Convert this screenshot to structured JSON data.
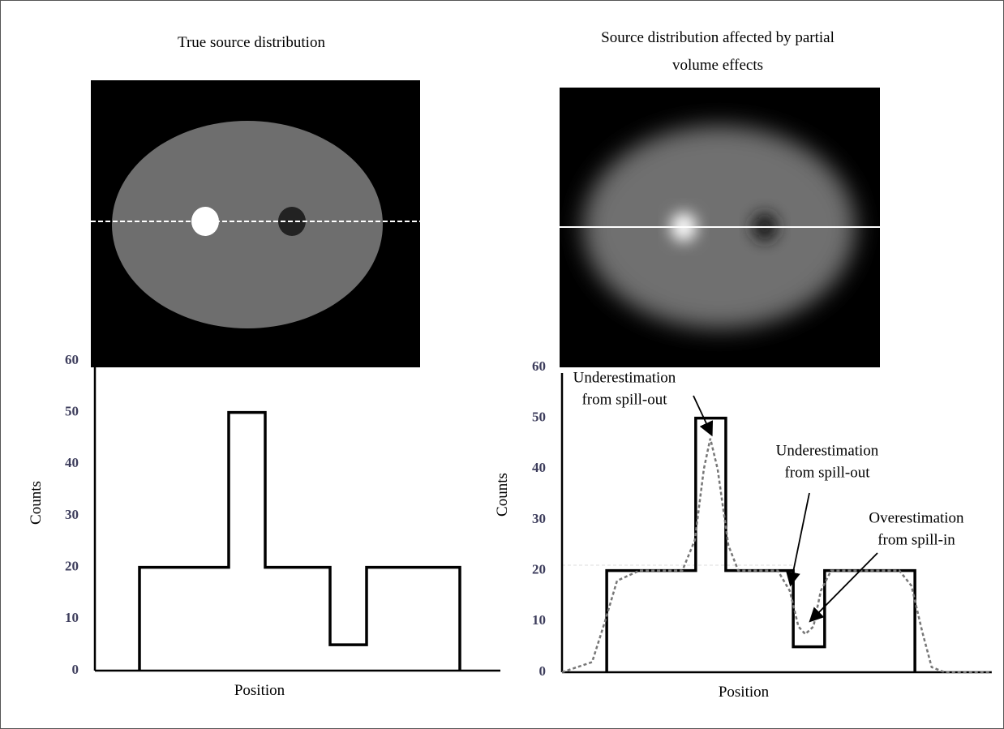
{
  "chart_data": [
    {
      "type": "line",
      "title": [
        "True source distribution"
      ],
      "ylabel": "Counts",
      "xlabel": "Position",
      "ylim": [
        0,
        60
      ],
      "yticks": [
        0,
        10,
        20,
        30,
        40,
        50,
        60
      ],
      "xlim": [
        0,
        100
      ],
      "grid": false,
      "series": [
        {
          "color": "#000000",
          "dash": false,
          "x": [
            11,
            11,
            33,
            33,
            42,
            42,
            58,
            58,
            67,
            67,
            90,
            90
          ],
          "values": [
            0,
            20,
            20,
            50,
            50,
            20,
            20,
            5,
            5,
            20,
            20,
            0
          ]
        }
      ],
      "annotations": []
    },
    {
      "type": "line",
      "title": [
        "Source distribution affected by partial",
        "volume effects"
      ],
      "ylabel": "Counts",
      "xlabel": "Position",
      "ylim": [
        0,
        60
      ],
      "yticks": [
        0,
        10,
        20,
        30,
        40,
        50,
        60
      ],
      "xlim": [
        0,
        100
      ],
      "grid": false,
      "series": [
        {
          "color": "#000000",
          "dash": false,
          "x": [
            10.4,
            10.4,
            31.1,
            31.1,
            38.1,
            38.1,
            53.8,
            53.8,
            61.1,
            61.1,
            82.1,
            82.1
          ],
          "values": [
            0,
            20,
            20,
            50,
            50,
            20,
            20,
            5,
            5,
            20,
            20,
            0
          ]
        },
        {
          "color": "#777777",
          "dash": true,
          "x": [
            0,
            7,
            10,
            12.8,
            18,
            28,
            30.9,
            33,
            34.5,
            36.2,
            38.7,
            41,
            50.2,
            53,
            55,
            56.6,
            58.5,
            60.2,
            62.6,
            78.5,
            81.3,
            83.8,
            86,
            89,
            100
          ],
          "values": [
            0,
            2,
            10,
            18,
            20,
            20,
            26,
            40,
            46,
            40,
            25,
            20,
            20,
            16,
            9,
            7.5,
            9,
            16,
            20,
            20,
            17,
            8,
            1,
            0,
            0
          ]
        }
      ],
      "annotations": [
        {
          "lines": [
            "Underestimation",
            "from spill-out"
          ]
        },
        {
          "lines": [
            "Underestimation",
            "from spill-out"
          ]
        },
        {
          "lines": [
            "Overestimation",
            "from spill-in"
          ]
        }
      ]
    }
  ]
}
